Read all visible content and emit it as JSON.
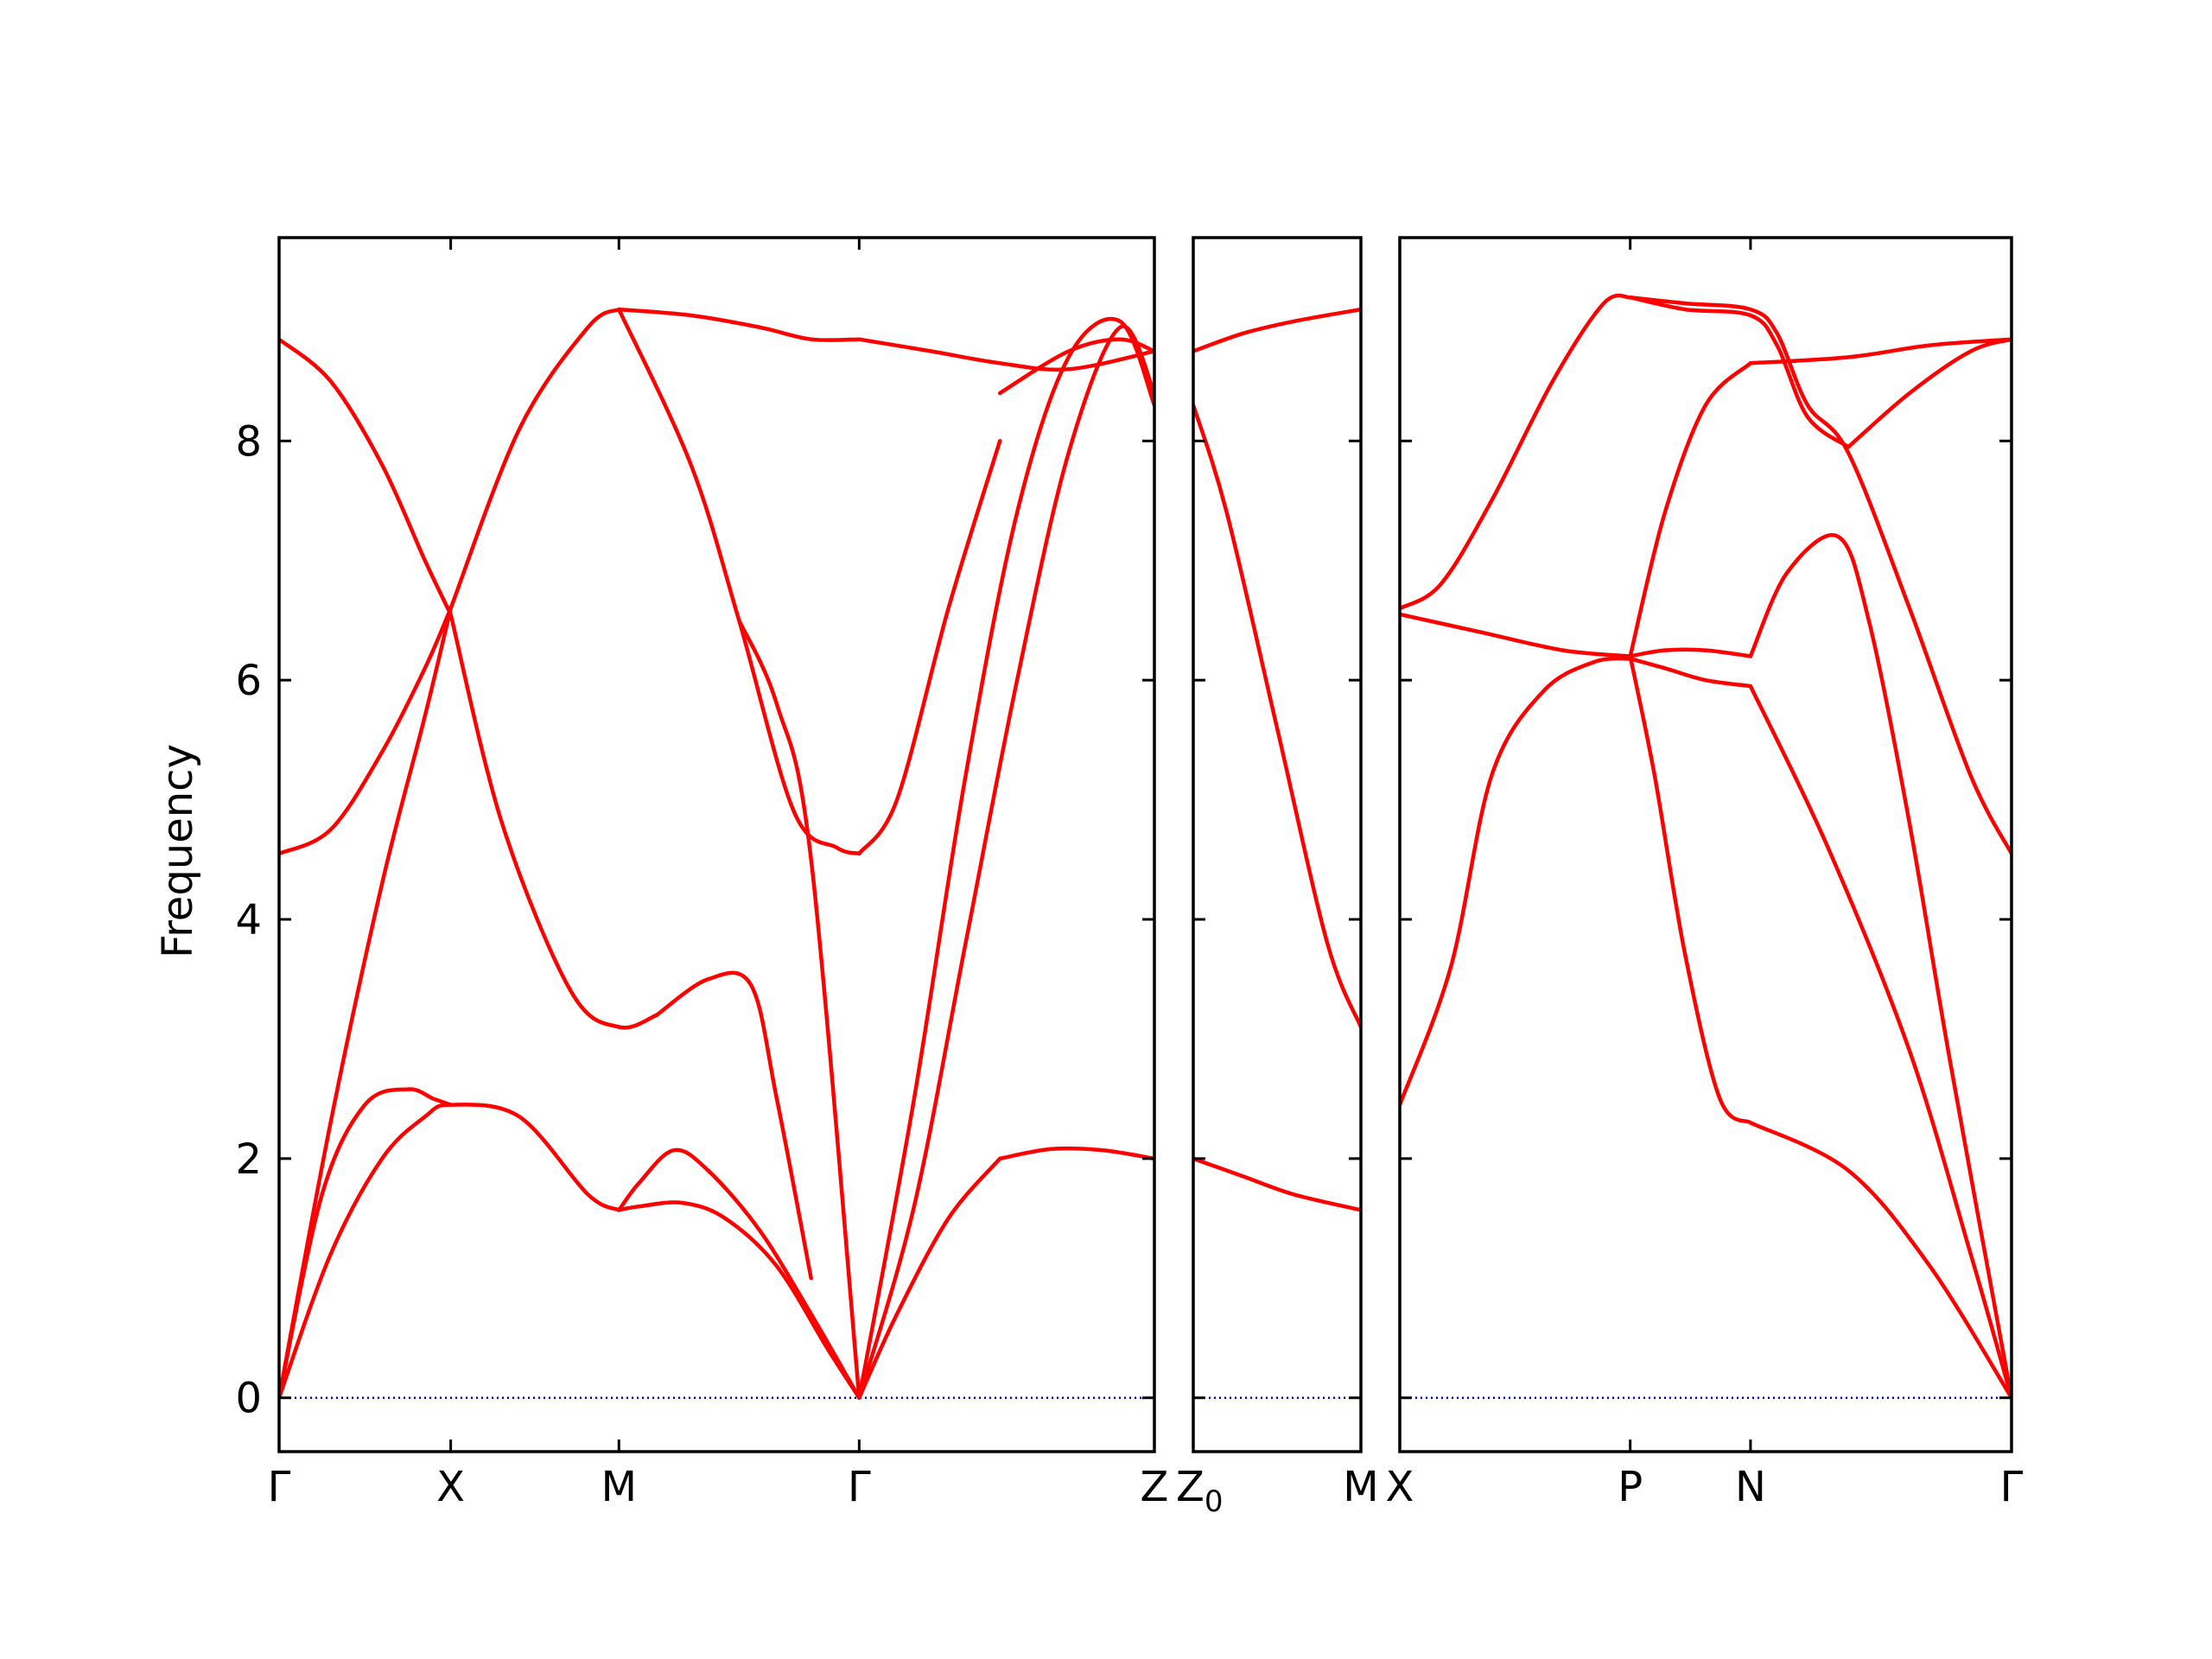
{
  "chart_data": {
    "type": "line",
    "ylabel": "Frequency",
    "ylim": [
      -0.45,
      9.7
    ],
    "yticks": [
      0,
      2,
      4,
      6,
      8
    ],
    "colors": {
      "bands": "#ff0000",
      "zero_line": "#0000cc",
      "axes": "#000000"
    },
    "grid": false,
    "panels": [
      {
        "xlim": [
          0,
          5.1
        ],
        "ticks": [
          {
            "x": 0,
            "label": "Γ",
            "sub": ""
          },
          {
            "x": 1.0,
            "label": "X",
            "sub": ""
          },
          {
            "x": 1.98,
            "label": "M",
            "sub": ""
          },
          {
            "x": 3.38,
            "label": "Γ",
            "sub": ""
          },
          {
            "x": 5.1,
            "label": "Z",
            "sub": ""
          }
        ],
        "series": [
          {
            "x": [
              0,
              0.3,
              0.6,
              0.85,
              1.0,
              1.4,
              1.8,
              1.98
            ],
            "y": [
              0,
              1.2,
              2.0,
              2.35,
              2.45,
              2.35,
              1.7,
              1.57
            ]
          },
          {
            "x": [
              0,
              0.25,
              0.5,
              0.75,
              0.9,
              1.0
            ],
            "y": [
              0,
              1.7,
              2.45,
              2.58,
              2.5,
              2.45
            ]
          },
          {
            "x": [
              1.98,
              2.1,
              2.35,
              2.6,
              2.9,
              3.2,
              3.38
            ],
            "y": [
              1.57,
              1.6,
              1.63,
              1.5,
              1.1,
              0.4,
              0
            ]
          },
          {
            "x": [
              1.98,
              2.1,
              2.3,
              2.5,
              2.8,
              3.1,
              3.38
            ],
            "y": [
              1.57,
              1.8,
              2.07,
              1.9,
              1.4,
              0.7,
              0
            ]
          },
          {
            "x": [
              0,
              0.3,
              0.6,
              0.85,
              1.0
            ],
            "y": [
              0,
              2.3,
              4.3,
              5.7,
              6.6
            ]
          },
          {
            "x": [
              0,
              0.3,
              0.6,
              0.85,
              1.0
            ],
            "y": [
              4.55,
              4.75,
              5.4,
              6.1,
              6.6
            ]
          },
          {
            "x": [
              0,
              0.3,
              0.6,
              0.85,
              1.0
            ],
            "y": [
              8.85,
              8.5,
              7.8,
              7.0,
              6.55
            ]
          },
          {
            "x": [
              1.0,
              1.4,
              1.8,
              1.98
            ],
            "y": [
              6.6,
              8.1,
              8.95,
              9.1
            ]
          },
          {
            "x": [
              1.0,
              1.3,
              1.7,
              1.98,
              2.2
            ],
            "y": [
              6.55,
              4.8,
              3.4,
              3.1,
              3.2
            ]
          },
          {
            "x": [
              2.2,
              2.5,
              2.75,
              2.9,
              3.1
            ],
            "y": [
              3.2,
              3.5,
              3.45,
              2.5,
              1.0
            ]
          },
          {
            "x": [
              1.98,
              2.4,
              2.68,
              3.0,
              3.25,
              3.38
            ],
            "y": [
              9.1,
              7.8,
              6.5,
              4.9,
              4.6,
              4.55
            ]
          },
          {
            "x": [
              2.68,
              2.9,
              3.1,
              3.38
            ],
            "y": [
              6.5,
              5.8,
              4.5,
              0
            ]
          },
          {
            "x": [
              3.38,
              3.6,
              3.9,
              4.2
            ],
            "y": [
              0,
              0.7,
              1.5,
              2.0
            ]
          },
          {
            "x": [
              4.2,
              4.5,
              4.8,
              5.1
            ],
            "y": [
              2.0,
              2.08,
              2.07,
              2.0
            ]
          },
          {
            "x": [
              3.38,
              3.7,
              4.0,
              4.3,
              4.6,
              4.9,
              5.1
            ],
            "y": [
              0,
              2.5,
              5.2,
              7.4,
              8.7,
              9.0,
              8.3
            ]
          },
          {
            "x": [
              3.38,
              3.7,
              4.0,
              4.3,
              4.6,
              4.9,
              5.1
            ],
            "y": [
              0,
              1.6,
              3.8,
              6.0,
              7.9,
              8.95,
              8.4
            ]
          },
          {
            "x": [
              3.38,
              3.6,
              3.9,
              4.2
            ],
            "y": [
              4.55,
              5.0,
              6.6,
              8.0
            ]
          },
          {
            "x": [
              4.2,
              4.6,
              4.9,
              5.1
            ],
            "y": [
              8.4,
              8.75,
              8.85,
              8.75
            ]
          },
          {
            "x": [
              1.98,
              2.4,
              2.8,
              3.1,
              3.38
            ],
            "y": [
              9.1,
              9.05,
              8.95,
              8.85,
              8.85
            ]
          },
          {
            "x": [
              3.38,
              3.8,
              4.2,
              4.6,
              5.1
            ],
            "y": [
              8.85,
              8.75,
              8.65,
              8.6,
              8.75
            ]
          }
        ]
      },
      {
        "xlim": [
          0,
          1.0
        ],
        "ticks": [
          {
            "x": 0,
            "label": "Z",
            "sub": "0"
          },
          {
            "x": 1.0,
            "label": "M",
            "sub": ""
          }
        ],
        "series": [
          {
            "x": [
              0,
              0.3,
              0.6,
              1.0
            ],
            "y": [
              2.0,
              1.85,
              1.7,
              1.57
            ]
          },
          {
            "x": [
              0,
              0.2,
              0.5,
              0.8,
              1.0
            ],
            "y": [
              8.3,
              7.4,
              5.6,
              3.8,
              3.1
            ]
          },
          {
            "x": [
              0,
              0.3,
              0.6,
              1.0
            ],
            "y": [
              8.75,
              8.9,
              9.0,
              9.1
            ]
          }
        ]
      },
      {
        "xlim": [
          0,
          3.0
        ],
        "ticks": [
          {
            "x": 0,
            "label": "X",
            "sub": ""
          },
          {
            "x": 1.13,
            "label": "P",
            "sub": ""
          },
          {
            "x": 1.72,
            "label": "N",
            "sub": ""
          },
          {
            "x": 3.0,
            "label": "Γ",
            "sub": ""
          }
        ],
        "series": [
          {
            "x": [
              0,
              0.25,
              0.45,
              0.7,
              0.95,
              1.13
            ],
            "y": [
              2.45,
              3.6,
              5.2,
              5.9,
              6.15,
              6.18
            ]
          },
          {
            "x": [
              1.13,
              1.3,
              1.5,
              1.72
            ],
            "y": [
              6.18,
              6.1,
              6.0,
              5.95
            ]
          },
          {
            "x": [
              1.72,
              2.1,
              2.5,
              2.8,
              3.0
            ],
            "y": [
              5.95,
              4.6,
              2.9,
              1.2,
              0
            ]
          },
          {
            "x": [
              0,
              0.4,
              0.8,
              1.13
            ],
            "y": [
              6.55,
              6.4,
              6.25,
              6.2
            ]
          },
          {
            "x": [
              1.13,
              1.3,
              1.5,
              1.72
            ],
            "y": [
              6.2,
              6.25,
              6.25,
              6.2
            ]
          },
          {
            "x": [
              1.72,
              1.9,
              2.15,
              2.3,
              2.5,
              2.7,
              3.0
            ],
            "y": [
              6.2,
              6.9,
              7.2,
              6.5,
              4.8,
              2.8,
              0
            ]
          },
          {
            "x": [
              1.13,
              1.25,
              1.4,
              1.57,
              1.72
            ],
            "y": [
              6.2,
              5.2,
              3.7,
              2.5,
              2.3
            ]
          },
          {
            "x": [
              1.72,
              2.2,
              2.6,
              3.0
            ],
            "y": [
              2.3,
              1.9,
              1.1,
              0
            ]
          },
          {
            "x": [
              0,
              0.2,
              0.45,
              0.75,
              1.0,
              1.13
            ],
            "y": [
              6.6,
              6.8,
              7.5,
              8.5,
              9.15,
              9.2
            ]
          },
          {
            "x": [
              1.13,
              1.4,
              1.72,
              1.85,
              2.0,
              2.2,
              2.5,
              2.8,
              3.0
            ],
            "y": [
              9.2,
              9.15,
              9.1,
              8.9,
              8.3,
              7.9,
              6.6,
              5.2,
              4.55
            ]
          },
          {
            "x": [
              1.13,
              1.4,
              1.72,
              1.85,
              2.0,
              2.2
            ],
            "y": [
              9.2,
              9.1,
              9.05,
              8.8,
              8.2,
              7.95
            ]
          },
          {
            "x": [
              2.2,
              2.5,
              2.8,
              3.0
            ],
            "y": [
              7.95,
              8.4,
              8.75,
              8.85
            ]
          },
          {
            "x": [
              1.13,
              1.3,
              1.5,
              1.72
            ],
            "y": [
              6.2,
              7.4,
              8.3,
              8.65
            ]
          },
          {
            "x": [
              1.72,
              2.2,
              2.6,
              3.0
            ],
            "y": [
              8.65,
              8.7,
              8.8,
              8.85
            ]
          }
        ]
      }
    ]
  }
}
